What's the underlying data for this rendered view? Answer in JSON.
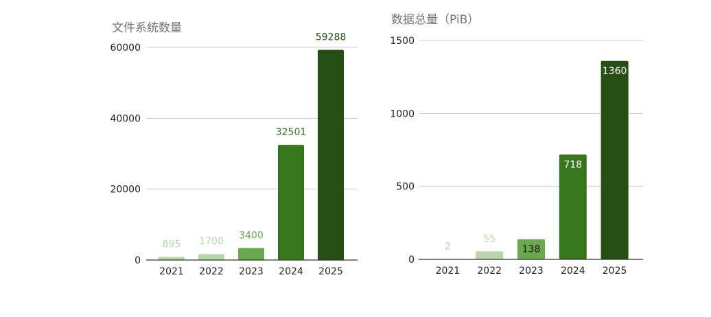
{
  "chart_data": [
    {
      "type": "bar",
      "title": "文件系统数量",
      "xlabel": "",
      "ylabel": "",
      "categories": [
        "2021",
        "2022",
        "2023",
        "2024",
        "2025"
      ],
      "values": [
        895,
        1700,
        3400,
        32501,
        59288
      ],
      "data_labels": [
        "895",
        "1700",
        "3400",
        "32501",
        "59288"
      ],
      "ylim": [
        0,
        60000
      ],
      "yticks": [
        0,
        20000,
        40000,
        60000
      ],
      "ytick_labels": [
        "0",
        "20000",
        "40000",
        "60000"
      ],
      "grid": true,
      "legend": "none",
      "bar_colors": [
        "#b7d7a8",
        "#b7d7a8",
        "#6aa84f",
        "#38761d",
        "#274e13"
      ],
      "label_colors": [
        "#b7d7a8",
        "#b7d7a8",
        "#6aa84f",
        "#38761d",
        "#274e13"
      ],
      "label_position": "outside"
    },
    {
      "type": "bar",
      "title": "数据总量（PiB）",
      "xlabel": "",
      "ylabel": "",
      "categories": [
        "2021",
        "2022",
        "2023",
        "2024",
        "2025"
      ],
      "values": [
        2,
        55,
        138,
        718,
        1360
      ],
      "data_labels": [
        "2",
        "55",
        "138",
        "718",
        "1360"
      ],
      "ylim": [
        0,
        1500
      ],
      "yticks": [
        0,
        500,
        1000,
        1500
      ],
      "ytick_labels": [
        "0",
        "500",
        "1000",
        "1500"
      ],
      "grid": true,
      "legend": "none",
      "bar_colors": [
        "#b7d7a8",
        "#b7d7a8",
        "#6aa84f",
        "#38761d",
        "#274e13"
      ],
      "label_colors": [
        "#b7d7a8",
        "#b7d7a8",
        "#1a1a1a",
        "#ffffff",
        "#ffffff"
      ],
      "label_position": [
        "outside",
        "outside",
        "inside",
        "inside",
        "inside"
      ]
    }
  ]
}
